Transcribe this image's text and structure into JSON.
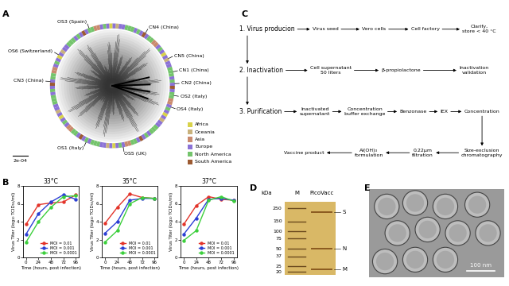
{
  "panel_labels": [
    "A",
    "B",
    "C",
    "D",
    "E"
  ],
  "tree": {
    "scale_label": "2e-04",
    "tips": [
      "OS3 (Spain)",
      "CN4 (China)",
      "CN5 (China)",
      "CN1 (China)",
      "CN2 (China)",
      "OS2 (Italy)",
      "OS4 (Italy)",
      "OS5 (UK)",
      "OS1 (Italy)",
      "CN3 (China)",
      "OS6 (Switzerland)"
    ],
    "regions": [
      {
        "name": "Africa",
        "color": "#d8d24a"
      },
      {
        "name": "Oceania",
        "color": "#c9b27c"
      },
      {
        "name": "Asia",
        "color": "#c98a6e"
      },
      {
        "name": "Europe",
        "color": "#8b72d6"
      },
      {
        "name": "North America",
        "color": "#74c46c"
      },
      {
        "name": "South America",
        "color": "#9c5a32"
      }
    ]
  },
  "chart_data": [
    {
      "type": "line",
      "title": "33°C",
      "xlabel": "Time (hours, post infection)",
      "ylabel": "Virus Titer (log₁₀ TCID₅₀/ml)",
      "x": [
        0,
        24,
        48,
        72,
        96
      ],
      "xlim": [
        -6,
        102
      ],
      "xticks": [
        0,
        24,
        48,
        72,
        96
      ],
      "ylim": [
        0,
        8
      ],
      "yticks": [
        0,
        2,
        4,
        6,
        8
      ],
      "legend": "lower right",
      "series": [
        {
          "name": "MOI = 0.01",
          "color": "#e3342a",
          "marker": "o",
          "line_style": "solid",
          "values": [
            3.7,
            5.9,
            6.1,
            6.2,
            7.0
          ]
        },
        {
          "name": "MOI = 0.001",
          "color": "#2b3fd4",
          "marker": "o",
          "line_style": "solid",
          "values": [
            2.6,
            4.9,
            6.2,
            7.0,
            6.5
          ]
        },
        {
          "name": "MOI = 0.0001",
          "color": "#3ccf3c",
          "marker": "o",
          "line_style": "solid",
          "values": [
            1.7,
            4.0,
            5.6,
            6.8,
            6.9
          ]
        }
      ]
    },
    {
      "type": "line",
      "title": "35°C",
      "xlabel": "Time (hours, post infection)",
      "ylabel": "Virus Titer (log₁₀ TCID₅₀/ml)",
      "x": [
        0,
        24,
        48,
        72,
        96
      ],
      "xlim": [
        -6,
        102
      ],
      "xticks": [
        0,
        24,
        48,
        72,
        96
      ],
      "ylim": [
        0,
        8
      ],
      "yticks": [
        0,
        2,
        4,
        6,
        8
      ],
      "legend": "lower right",
      "series": [
        {
          "name": "MOI = 0.01",
          "color": "#e3342a",
          "marker": "o",
          "line_style": "solid",
          "values": [
            3.8,
            5.6,
            7.1,
            6.7,
            6.6
          ]
        },
        {
          "name": "MOI = 0.001",
          "color": "#2b3fd4",
          "marker": "o",
          "line_style": "solid",
          "values": [
            2.7,
            4.0,
            6.4,
            6.6,
            6.6
          ]
        },
        {
          "name": "MOI = 0.0001",
          "color": "#3ccf3c",
          "marker": "o",
          "line_style": "solid",
          "values": [
            1.7,
            3.0,
            6.0,
            6.7,
            6.6
          ]
        }
      ]
    },
    {
      "type": "line",
      "title": "37°C",
      "xlabel": "Time (hours, post infection)",
      "ylabel": "Virus Titer (log₁₀ TCID₅₀/ml)",
      "x": [
        0,
        24,
        48,
        72,
        96
      ],
      "xlim": [
        -6,
        102
      ],
      "xticks": [
        0,
        24,
        48,
        72,
        96
      ],
      "ylim": [
        0,
        8
      ],
      "yticks": [
        0,
        2,
        4,
        6,
        8
      ],
      "legend": "lower right",
      "series": [
        {
          "name": "MOI = 0.01",
          "color": "#e3342a",
          "marker": "o",
          "line_style": "solid",
          "values": [
            3.7,
            5.8,
            6.8,
            6.5,
            6.4
          ]
        },
        {
          "name": "MOI = 0.001",
          "color": "#2b3fd4",
          "marker": "o",
          "line_style": "solid",
          "values": [
            2.6,
            4.4,
            6.5,
            6.6,
            6.4
          ]
        },
        {
          "name": "MOI = 0.0001",
          "color": "#3ccf3c",
          "marker": "o",
          "line_style": "solid",
          "values": [
            1.9,
            3.0,
            6.4,
            6.8,
            6.3
          ]
        }
      ]
    }
  ],
  "flowchart": {
    "stages": [
      {
        "title": "1. Virus producion",
        "steps": [
          "Virus seed",
          "Vero cells",
          "Cell factory",
          "Clarify,\nstore < 40 °C"
        ]
      },
      {
        "title": "2. Inactivation",
        "steps": [
          "Cell supernatant\n50 liters",
          "β-propiolactone",
          "Inactivation\nvalidation"
        ]
      },
      {
        "title": "3. Purification",
        "steps": [
          "Inactivated\nsupernatant",
          "Concentration\nbuffer exchange",
          "Benzonase",
          "IEX",
          "Concentration",
          "Size-exclusion\nchromatography",
          "0.22μm\nfiltration",
          "Al(OH)₃\nformulation",
          "Vaccine product"
        ]
      }
    ]
  },
  "gel": {
    "header": "kDa",
    "lanes": [
      "M",
      "PicoVacc"
    ],
    "marker_kDa": [
      250,
      150,
      100,
      75,
      50,
      37,
      25,
      20
    ],
    "bands": [
      {
        "label": "S",
        "kDa": 220
      },
      {
        "label": "N",
        "kDa": 50
      },
      {
        "label": "M",
        "kDa": 22
      }
    ]
  },
  "micrograph": {
    "scale_bar": "100 nm"
  }
}
